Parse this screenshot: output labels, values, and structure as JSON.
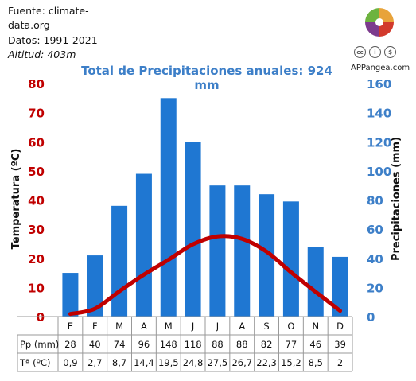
{
  "source": {
    "line1": "Fuente: climate-",
    "line2": "data.org",
    "line3": "Datos: 1991-2021",
    "altitude_label": "Altitud:",
    "altitude_value": "403m"
  },
  "branding": {
    "site": "APPangea.com",
    "license_icons": [
      "cc-icon",
      "by-icon",
      "nc-icon"
    ]
  },
  "chart_data": {
    "type": "bar",
    "title": "Total de Precipitaciones anuales: 924 mm",
    "categories": [
      "E",
      "F",
      "M",
      "A",
      "M",
      "J",
      "J",
      "A",
      "S",
      "O",
      "N",
      "D"
    ],
    "series": [
      {
        "name": "Pp (mm)",
        "type": "bar",
        "axis": "right",
        "color": "#1f77d2",
        "values": [
          28,
          40,
          74,
          96,
          148,
          118,
          88,
          88,
          82,
          77,
          46,
          39
        ]
      },
      {
        "name": "Tª (ºC)",
        "type": "line",
        "axis": "left",
        "color": "#c00000",
        "values": [
          0.9,
          2.7,
          8.7,
          14.4,
          19.5,
          24.8,
          27.5,
          26.7,
          22.3,
          15.2,
          8.5,
          2
        ]
      }
    ],
    "bar_heights_drawn": [
      30,
      42,
      76,
      98,
      150,
      120,
      90,
      90,
      84,
      79,
      48,
      41
    ],
    "ylabel_left": "Temperatura (ºC)",
    "ylabel_right": "Precipitaciones (mm)",
    "ylim_left": [
      0,
      80
    ],
    "ylim_right": [
      0,
      160
    ],
    "yticks_left": [
      "0",
      "10",
      "20",
      "30",
      "40",
      "50",
      "60",
      "70",
      "80"
    ],
    "yticks_right": [
      "0",
      "20",
      "40",
      "60",
      "80",
      "100",
      "120",
      "140",
      "160"
    ],
    "left_axis_color": "#c00000",
    "right_axis_color": "#3d7fc8",
    "grid": false
  },
  "table": {
    "pp_label": "Pp (mm)",
    "pp_values": [
      "28",
      "40",
      "74",
      "96",
      "148",
      "118",
      "88",
      "88",
      "82",
      "77",
      "46",
      "39"
    ],
    "t_label": "Tª (ºC)",
    "t_values": [
      "0,9",
      "2,7",
      "8,7",
      "14,4",
      "19,5",
      "24,8",
      "27,5",
      "26,7",
      "22,3",
      "15,2",
      "8,5",
      "2"
    ]
  }
}
